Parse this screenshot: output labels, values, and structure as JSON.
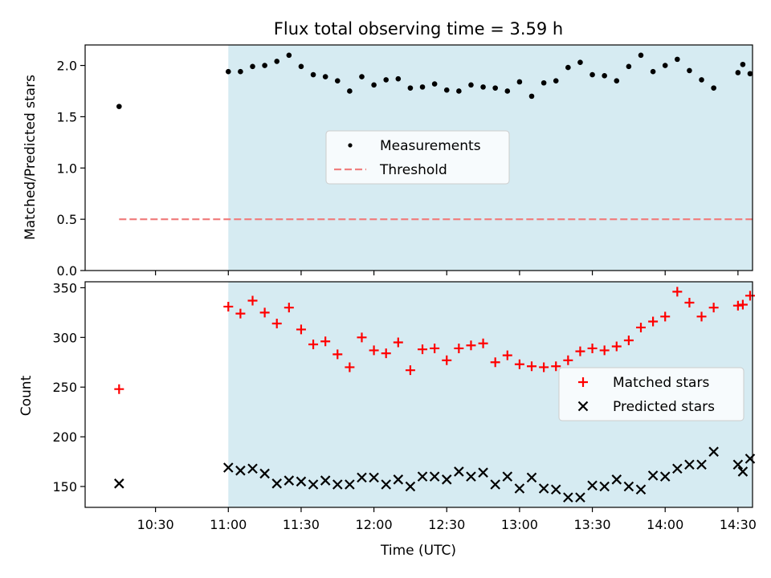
{
  "chart_data": [
    {
      "type": "scatter",
      "title": "Flux total observing time = 3.59 h",
      "ylabel": "Matched/Predicted stars",
      "xlim": [
        "10:01",
        "14:36"
      ],
      "ylim": [
        0,
        2.2
      ],
      "yticks": [
        "0.0",
        "0.5",
        "1.0",
        "1.5",
        "2.0"
      ],
      "shaded_span": [
        "11:00",
        "14:36"
      ],
      "shaded_color": "#add8e6",
      "legend": {
        "placement": "center",
        "entries": [
          "Measurements",
          "Threshold"
        ]
      },
      "threshold": {
        "name": "Threshold",
        "y": 0.5,
        "x_range": [
          "10:15",
          "14:36"
        ],
        "color": "#f08080"
      },
      "series": [
        {
          "name": "Measurements",
          "color": "#000000",
          "marker": "dot",
          "x": [
            "10:15",
            "11:00",
            "11:05",
            "11:10",
            "11:15",
            "11:20",
            "11:25",
            "11:30",
            "11:35",
            "11:40",
            "11:45",
            "11:50",
            "11:55",
            "12:00",
            "12:05",
            "12:10",
            "12:15",
            "12:20",
            "12:25",
            "12:30",
            "12:35",
            "12:40",
            "12:45",
            "12:50",
            "12:55",
            "13:00",
            "13:05",
            "13:10",
            "13:15",
            "13:20",
            "13:25",
            "13:30",
            "13:35",
            "13:40",
            "13:45",
            "13:50",
            "13:55",
            "14:00",
            "14:05",
            "14:10",
            "14:15",
            "14:20",
            "14:30",
            "14:32",
            "14:35"
          ],
          "y": [
            1.6,
            1.94,
            1.94,
            1.99,
            2.0,
            2.04,
            2.1,
            1.99,
            1.91,
            1.89,
            1.85,
            1.75,
            1.89,
            1.81,
            1.86,
            1.87,
            1.78,
            1.79,
            1.82,
            1.76,
            1.75,
            1.81,
            1.79,
            1.78,
            1.75,
            1.84,
            1.7,
            1.83,
            1.85,
            1.98,
            2.03,
            1.91,
            1.9,
            1.85,
            1.99,
            2.1,
            1.94,
            2.0,
            2.06,
            1.95,
            1.86,
            1.78,
            1.93,
            2.01,
            1.92
          ]
        }
      ]
    },
    {
      "type": "scatter",
      "xlabel": "Time (UTC)",
      "ylabel": "Count",
      "xlim": [
        "10:01",
        "14:36"
      ],
      "ylim": [
        129,
        356
      ],
      "yticks": [
        "150",
        "200",
        "250",
        "300",
        "350"
      ],
      "xticks": [
        "10:30",
        "11:00",
        "11:30",
        "12:00",
        "12:30",
        "13:00",
        "13:30",
        "14:00",
        "14:30"
      ],
      "shaded_span": [
        "11:00",
        "14:36"
      ],
      "shaded_color": "#add8e6",
      "legend": {
        "placement": "center-right",
        "entries": [
          "Matched stars",
          "Predicted stars"
        ]
      },
      "series": [
        {
          "name": "Matched stars",
          "color": "#ff0000",
          "marker": "plus",
          "x": [
            "10:15",
            "11:00",
            "11:05",
            "11:10",
            "11:15",
            "11:20",
            "11:25",
            "11:30",
            "11:35",
            "11:40",
            "11:45",
            "11:50",
            "11:55",
            "12:00",
            "12:05",
            "12:10",
            "12:15",
            "12:20",
            "12:25",
            "12:30",
            "12:35",
            "12:40",
            "12:45",
            "12:50",
            "12:55",
            "13:00",
            "13:05",
            "13:10",
            "13:15",
            "13:20",
            "13:25",
            "13:30",
            "13:35",
            "13:40",
            "13:45",
            "13:50",
            "13:55",
            "14:00",
            "14:05",
            "14:10",
            "14:15",
            "14:20",
            "14:30",
            "14:32",
            "14:35"
          ],
          "y": [
            248,
            331,
            324,
            337,
            325,
            314,
            330,
            308,
            293,
            296,
            283,
            270,
            300,
            287,
            284,
            295,
            267,
            288,
            289,
            277,
            289,
            292,
            294,
            275,
            282,
            273,
            271,
            270,
            271,
            277,
            286,
            289,
            287,
            291,
            297,
            310,
            316,
            321,
            346,
            335,
            321,
            330,
            332,
            333,
            342
          ]
        },
        {
          "name": "Predicted stars",
          "color": "#000000",
          "marker": "x",
          "x": [
            "10:15",
            "11:00",
            "11:05",
            "11:10",
            "11:15",
            "11:20",
            "11:25",
            "11:30",
            "11:35",
            "11:40",
            "11:45",
            "11:50",
            "11:55",
            "12:00",
            "12:05",
            "12:10",
            "12:15",
            "12:20",
            "12:25",
            "12:30",
            "12:35",
            "12:40",
            "12:45",
            "12:50",
            "12:55",
            "13:00",
            "13:05",
            "13:10",
            "13:15",
            "13:20",
            "13:25",
            "13:30",
            "13:35",
            "13:40",
            "13:45",
            "13:50",
            "13:55",
            "14:00",
            "14:05",
            "14:10",
            "14:15",
            "14:20",
            "14:30",
            "14:32",
            "14:35"
          ],
          "y": [
            153,
            169,
            166,
            168,
            163,
            153,
            156,
            155,
            152,
            156,
            152,
            152,
            159,
            159,
            152,
            157,
            150,
            160,
            160,
            157,
            165,
            160,
            164,
            152,
            160,
            148,
            159,
            148,
            147,
            139,
            139,
            151,
            150,
            157,
            150,
            147,
            161,
            160,
            168,
            172,
            172,
            185,
            172,
            165,
            178
          ]
        }
      ]
    }
  ]
}
